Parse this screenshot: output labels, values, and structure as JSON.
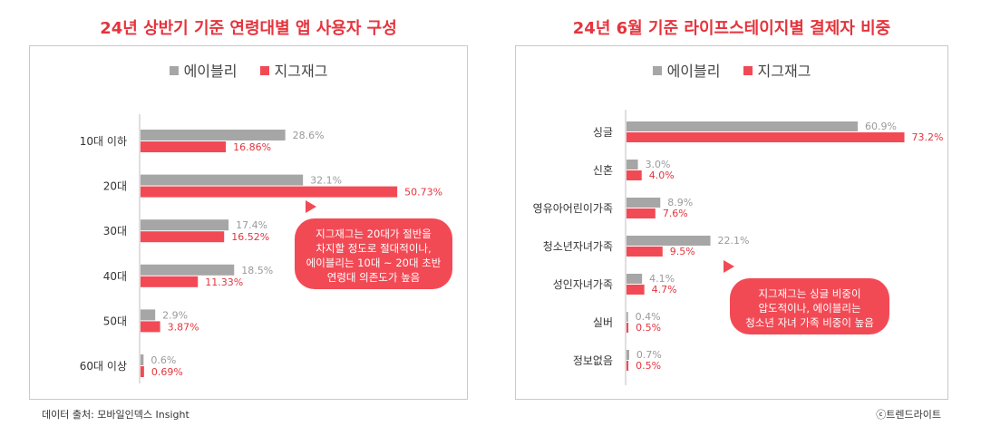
{
  "titles": {
    "left": "24년 상반기 기준 연령대별 앱 사용자 구성",
    "right": "24년 6월 기준 라이프스테이지별 결제자 비중"
  },
  "colors": {
    "ably": "#a6a6a6",
    "zigzag": "#f24a55",
    "title": "#e5343d",
    "bubble": "#f24a55"
  },
  "source": "데이터 출처: 모바일인덱스 Insight",
  "credit": "ⓒ트렌드라이트",
  "chart_data": [
    {
      "type": "bar",
      "orientation": "horizontal",
      "title": "24년 상반기 기준 연령대별 앱 사용자 구성",
      "categories": [
        "10대 이하",
        "20대",
        "30대",
        "40대",
        "50대",
        "60대 이상"
      ],
      "series": [
        {
          "name": "에이블리",
          "values": [
            28.6,
            32.1,
            17.4,
            18.5,
            2.9,
            0.6
          ],
          "labels": [
            "28.6%",
            "32.1%",
            "17.4%",
            "18.5%",
            "2.9%",
            "0.6%"
          ]
        },
        {
          "name": "지그재그",
          "values": [
            16.86,
            50.73,
            16.52,
            11.33,
            3.87,
            0.69
          ],
          "labels": [
            "16.86%",
            "50.73%",
            "16.52%",
            "11.33%",
            "3.87%",
            "0.69%"
          ]
        }
      ],
      "xlim": [
        0,
        55
      ],
      "legend_position": "top-center",
      "grid": false,
      "annotation": [
        "지그재그는 20대가 절반을",
        "차지할 정도로 절대적이나,",
        "에이블리는 10대 ~ 20대 초반",
        "연령대 의존도가 높음"
      ]
    },
    {
      "type": "bar",
      "orientation": "horizontal",
      "title": "24년 6월 기준 라이프스테이지별 결제자 비중",
      "categories": [
        "싱글",
        "신혼",
        "영유아어린이가족",
        "청소년자녀가족",
        "성인자녀가족",
        "실버",
        "정보없음"
      ],
      "series": [
        {
          "name": "에이블리",
          "values": [
            60.9,
            3.0,
            8.9,
            22.1,
            4.1,
            0.4,
            0.7
          ],
          "labels": [
            "60.9%",
            "3.0%",
            "8.9%",
            "22.1%",
            "4.1%",
            "0.4%",
            "0.7%"
          ]
        },
        {
          "name": "지그재그",
          "values": [
            73.2,
            4.0,
            7.6,
            9.5,
            4.7,
            0.5,
            0.5
          ],
          "labels": [
            "73.2%",
            "4.0%",
            "7.6%",
            "9.5%",
            "4.7%",
            "0.5%",
            "0.5%"
          ]
        }
      ],
      "xlim": [
        0,
        80
      ],
      "legend_position": "top-center",
      "grid": false,
      "annotation": [
        "지그재그는 싱글 비중이",
        "압도적이나, 에이블리는",
        "청소년 자녀 가족 비중이 높음"
      ]
    }
  ]
}
